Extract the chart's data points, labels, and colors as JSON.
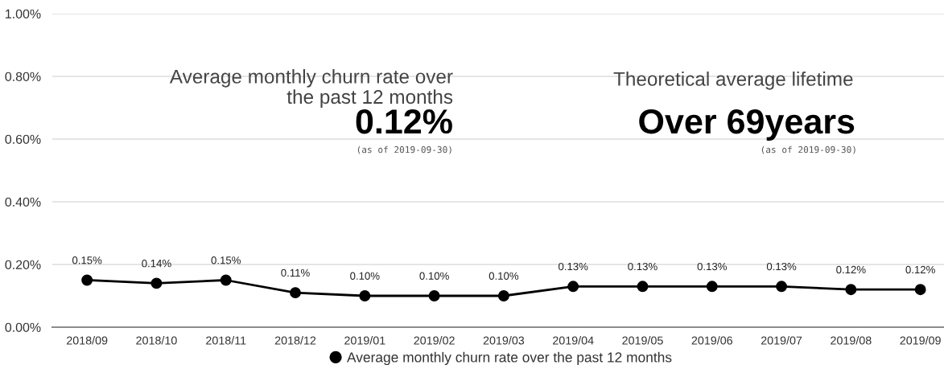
{
  "chart_data": {
    "type": "line",
    "categories": [
      "2018/09",
      "2018/10",
      "2018/11",
      "2018/12",
      "2019/01",
      "2019/02",
      "2019/03",
      "2019/04",
      "2019/05",
      "2019/06",
      "2019/07",
      "2019/08",
      "2019/09"
    ],
    "series": [
      {
        "name": "Average monthly churn rate over the past 12 months",
        "color": "#000000",
        "values": [
          0.15,
          0.14,
          0.15,
          0.11,
          0.1,
          0.1,
          0.1,
          0.13,
          0.13,
          0.13,
          0.13,
          0.12,
          0.12
        ],
        "value_labels": [
          "0.15%",
          "0.14%",
          "0.15%",
          "0.11%",
          "0.10%",
          "0.10%",
          "0.10%",
          "0.13%",
          "0.13%",
          "0.13%",
          "0.13%",
          "0.12%",
          "0.12%"
        ]
      }
    ],
    "ylim": [
      0,
      1
    ],
    "yticks": [
      {
        "value": 0,
        "label": "0.00%"
      },
      {
        "value": 0.2,
        "label": "0.20%"
      },
      {
        "value": 0.4,
        "label": "0.40%"
      },
      {
        "value": 0.6,
        "label": "0.60%"
      },
      {
        "value": 0.8,
        "label": "0.80%"
      },
      {
        "value": 1,
        "label": "1.00%"
      }
    ],
    "grid": "y",
    "legend": "bottom",
    "marker": "circle",
    "line_style": "solid",
    "annotations": [
      "Average monthly churn rate over\nthe past 12 months",
      "0.12%",
      "(as of 2019-09-30)",
      "Theoretical average lifetime",
      "Over 69years",
      "(as of 2019-09-30)"
    ]
  }
}
